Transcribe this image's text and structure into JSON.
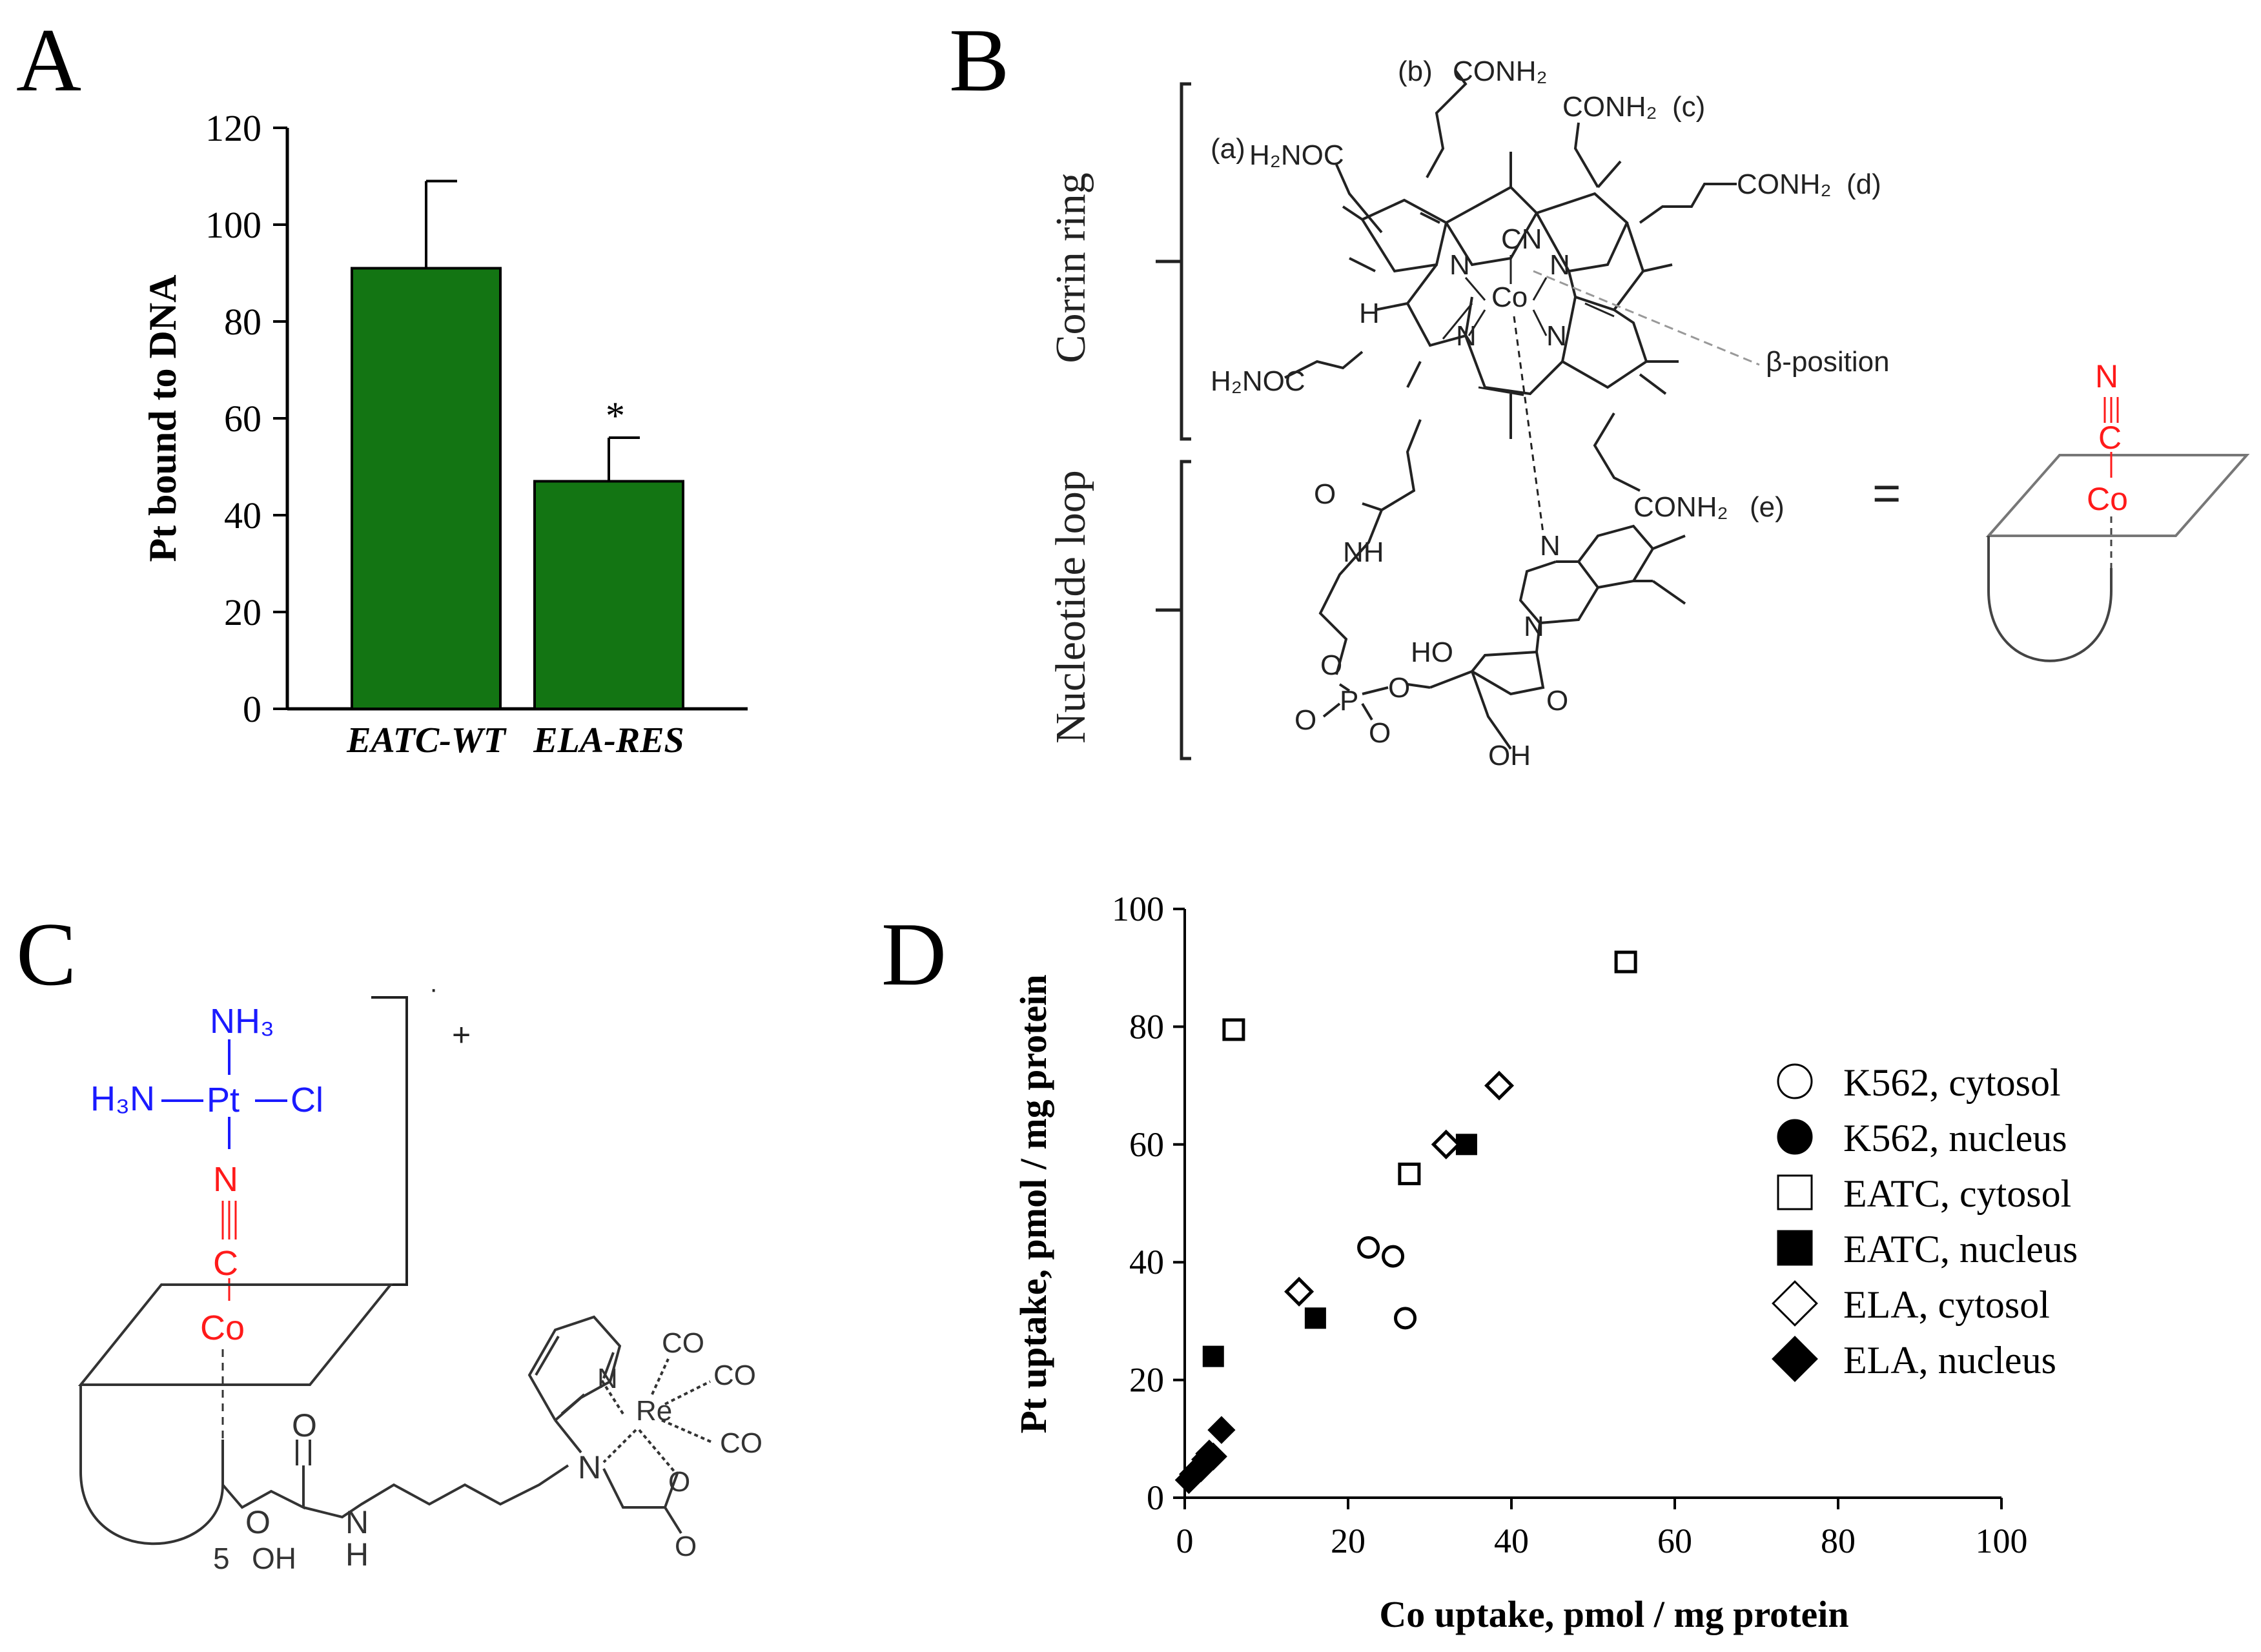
{
  "panels": {
    "a": {
      "label": "A"
    },
    "b": {
      "label": "B"
    },
    "c": {
      "label": "C"
    },
    "d": {
      "label": "D"
    }
  },
  "colors": {
    "bar_green": "#137513",
    "red": "#ff1a1a",
    "blue": "#1a1aff",
    "black": "#000000",
    "gray_line": "#8c8c8c"
  },
  "chart_data": [
    {
      "type": "bar",
      "panel": "A",
      "categories": [
        "EATC-WT",
        "ELA-RES"
      ],
      "values": [
        91,
        47
      ],
      "errors": [
        18,
        9
      ],
      "annotations": [
        "",
        "*"
      ],
      "ylabel": "Pt bound to DNA",
      "ylim": [
        0,
        120
      ],
      "yticks": [
        0,
        20,
        40,
        60,
        80,
        100,
        120
      ],
      "grid": false
    },
    {
      "type": "scatter",
      "panel": "D",
      "xlabel": "Co uptake, pmol / mg protein",
      "ylabel": "Pt uptake, pmol / mg protein",
      "xlim": [
        0,
        100
      ],
      "ylim": [
        0,
        100
      ],
      "xticks": [
        0,
        20,
        40,
        60,
        80,
        100
      ],
      "yticks": [
        0,
        20,
        40,
        60,
        80,
        100
      ],
      "legend_position": "right",
      "grid": false,
      "series": [
        {
          "name": "K562, cytosol",
          "marker": "circle",
          "filled": false,
          "points": [
            [
              22.5,
              42.5
            ],
            [
              25.5,
              41
            ],
            [
              27,
              30.5
            ]
          ]
        },
        {
          "name": "K562, nucleus",
          "marker": "circle",
          "filled": true,
          "points": []
        },
        {
          "name": "EATC, cytosol",
          "marker": "square",
          "filled": false,
          "points": [
            [
              6,
              79.5
            ],
            [
              27.5,
              55
            ],
            [
              54,
              91
            ]
          ]
        },
        {
          "name": "EATC, nucleus",
          "marker": "square",
          "filled": true,
          "points": [
            [
              3.5,
              24
            ],
            [
              16,
              30.5
            ],
            [
              34.5,
              60
            ]
          ]
        },
        {
          "name": "ELA, cytosol",
          "marker": "diamond",
          "filled": false,
          "points": [
            [
              14,
              35
            ],
            [
              32,
              60
            ],
            [
              38.5,
              70
            ]
          ]
        },
        {
          "name": "ELA, nucleus",
          "marker": "diamond",
          "filled": true,
          "points": [
            [
              0.5,
              3
            ],
            [
              1,
              4
            ],
            [
              1.5,
              4.5
            ],
            [
              2,
              5
            ],
            [
              2.5,
              6.5
            ],
            [
              3,
              7.5
            ],
            [
              3.5,
              7
            ],
            [
              4.5,
              11.5
            ]
          ]
        }
      ]
    }
  ],
  "structure_b": {
    "bracket_top": "Corrin ring",
    "bracket_bottom": "Nucleotide loop",
    "label_a": "(a)",
    "label_b": "(b)",
    "label_c": "(c)",
    "label_d": "(d)",
    "label_e": "(e)",
    "h2noc": "H₂NOC",
    "conh2": "CONH₂",
    "cn": "CN",
    "co": "Co",
    "n": "N",
    "h": "H",
    "o": "O",
    "nh": "NH",
    "p": "P",
    "ho": "HO",
    "oh": "OH",
    "beta": "β-position",
    "equals": "=",
    "schem_n": "N",
    "schem_c": "C",
    "schem_co": "Co"
  },
  "structure_c": {
    "nh3": "NH₃",
    "h3n": "H₃N",
    "pt": "Pt",
    "cl": "Cl",
    "n": "N",
    "c": "C",
    "co": "Co",
    "plus": "+",
    "dot": "·",
    "o": "O",
    "nh": "N",
    "h": "H",
    "five": "5",
    "oh": "OH",
    "re": "Re",
    "carbonyl": "CO",
    "amine_n": "N",
    "pyr_n": "N"
  }
}
